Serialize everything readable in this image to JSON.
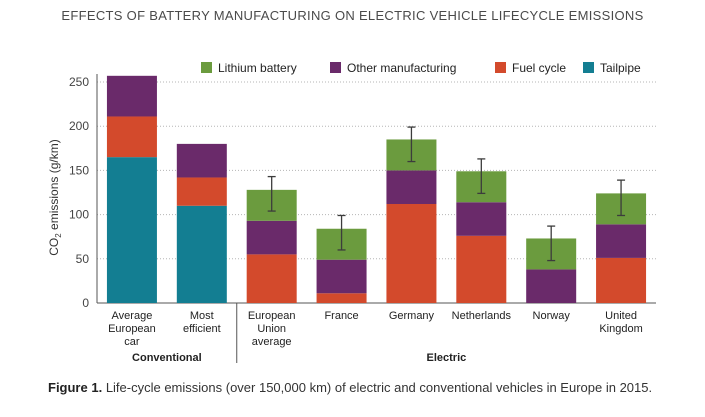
{
  "header": {
    "title": "EFFECTS OF BATTERY MANUFACTURING ON ELECTRIC VEHICLE LIFECYCLE EMISSIONS"
  },
  "caption": {
    "label": "Figure 1.",
    "text": "Life-cycle emissions (over 150,000 km) of electric and conventional vehicles in Europe in 2015."
  },
  "chart_data": {
    "type": "bar",
    "stacked": true,
    "title": "EFFECTS OF BATTERY MANUFACTURING ON ELECTRIC VEHICLE LIFECYCLE EMISSIONS",
    "ylabel": "CO2 emissions (g/km)",
    "ylabel_main": "CO",
    "ylabel_sub": "2",
    "ylabel_rest": " emissions (g/km)",
    "ylim": [
      0,
      250
    ],
    "yticks": [
      0,
      50,
      100,
      150,
      200,
      250
    ],
    "grid": "horizontal-dotted",
    "legend_position": "top-right",
    "categories": [
      [
        "Average",
        "European",
        "car"
      ],
      [
        "Most",
        "efficient"
      ],
      [
        "European",
        "Union",
        "average"
      ],
      [
        "France"
      ],
      [
        "Germany"
      ],
      [
        "Netherlands"
      ],
      [
        "Norway"
      ],
      [
        "United",
        "Kingdom"
      ]
    ],
    "groups": [
      {
        "label": "Conventional",
        "start": 0,
        "end": 1
      },
      {
        "label": "Electric",
        "start": 2,
        "end": 7
      }
    ],
    "series": [
      {
        "name": "Tailpipe",
        "color": "#137e92",
        "values": [
          165,
          110,
          0,
          0,
          0,
          0,
          0,
          0
        ]
      },
      {
        "name": "Fuel cycle",
        "color": "#d34a2c",
        "values": [
          46,
          32,
          55,
          11,
          112,
          76,
          0,
          51
        ]
      },
      {
        "name": "Other manufacturing",
        "color": "#6a2a6a",
        "values": [
          46,
          38,
          38,
          38,
          38,
          38,
          38,
          38
        ]
      },
      {
        "name": "Lithium battery",
        "color": "#6b9b3e",
        "values": [
          0,
          0,
          35,
          35,
          35,
          35,
          35,
          35
        ]
      }
    ],
    "legend_order": [
      "Lithium battery",
      "Other manufacturing",
      "Fuel cycle",
      "Tailpipe"
    ],
    "error_bars": [
      null,
      null,
      [
        104,
        143
      ],
      [
        60,
        99
      ],
      [
        160,
        199
      ],
      [
        124,
        163
      ],
      [
        48,
        87
      ],
      [
        99,
        139
      ]
    ]
  }
}
